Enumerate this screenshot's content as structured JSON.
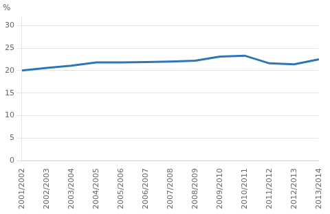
{
  "chart_data": {
    "type": "line",
    "ylabel": "%",
    "categories": [
      "2001/2002",
      "2002/2003",
      "2003/2004",
      "2004/2005",
      "2005/2006",
      "2006/2007",
      "2007/2008",
      "2008/2009",
      "2009/2010",
      "2010/2011",
      "2011/2012",
      "2012/2013",
      "2013/2014"
    ],
    "values": [
      20.0,
      20.6,
      21.1,
      21.8,
      21.8,
      21.9,
      22.0,
      22.2,
      23.1,
      23.3,
      21.6,
      21.4,
      22.5
    ],
    "color": "#2e75b6",
    "ylim": [
      0,
      32
    ],
    "yticks": [
      0,
      5,
      10,
      15,
      20,
      25,
      30
    ],
    "grid": true
  }
}
